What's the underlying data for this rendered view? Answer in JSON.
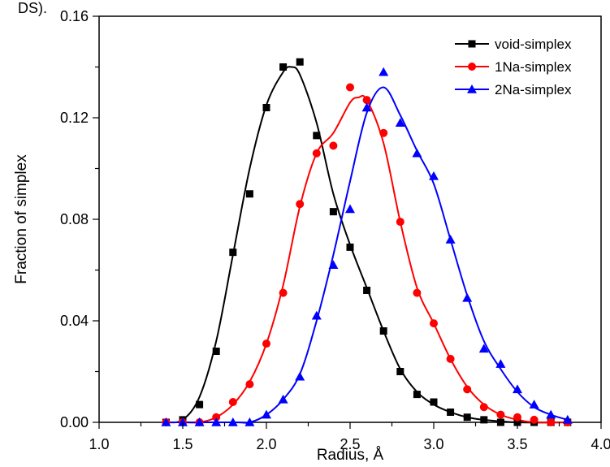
{
  "page": {
    "top_fragment": "DS)."
  },
  "chart_data": {
    "type": "line",
    "title": "",
    "xlabel": "Radius, Å",
    "ylabel": "Fraction of simplex",
    "xlim": [
      1.0,
      4.0
    ],
    "ylim": [
      0.0,
      0.16
    ],
    "xticks": [
      "1.0",
      "1.5",
      "2.0",
      "2.5",
      "3.0",
      "3.5",
      "4.0"
    ],
    "yticks": [
      "0.00",
      "0.04",
      "0.08",
      "0.12",
      "0.16"
    ],
    "grid": false,
    "legend_position": "top-right",
    "series": [
      {
        "name": "void-simplex",
        "color": "#000000",
        "marker": "square",
        "points": [
          [
            1.4,
            0.0
          ],
          [
            1.5,
            0.001
          ],
          [
            1.6,
            0.007
          ],
          [
            1.7,
            0.028
          ],
          [
            1.8,
            0.067
          ],
          [
            1.9,
            0.09
          ],
          [
            2.0,
            0.124
          ],
          [
            2.1,
            0.14
          ],
          [
            2.2,
            0.142
          ],
          [
            2.3,
            0.113
          ],
          [
            2.4,
            0.083
          ],
          [
            2.5,
            0.069
          ],
          [
            2.6,
            0.052
          ],
          [
            2.7,
            0.036
          ],
          [
            2.8,
            0.02
          ],
          [
            2.9,
            0.011
          ],
          [
            3.0,
            0.008
          ],
          [
            3.1,
            0.004
          ],
          [
            3.2,
            0.002
          ],
          [
            3.3,
            0.001
          ],
          [
            3.4,
            0.0
          ],
          [
            3.5,
            0.0
          ],
          [
            3.6,
            0.0
          ],
          [
            3.7,
            0.0
          ],
          [
            3.8,
            0.0
          ]
        ],
        "curve": [
          [
            1.4,
            0.0
          ],
          [
            1.5,
            0.001
          ],
          [
            1.6,
            0.01
          ],
          [
            1.7,
            0.032
          ],
          [
            1.8,
            0.066
          ],
          [
            1.9,
            0.1
          ],
          [
            2.0,
            0.125
          ],
          [
            2.1,
            0.138
          ],
          [
            2.15,
            0.14
          ],
          [
            2.2,
            0.137
          ],
          [
            2.3,
            0.118
          ],
          [
            2.4,
            0.09
          ],
          [
            2.5,
            0.07
          ],
          [
            2.6,
            0.053
          ],
          [
            2.7,
            0.036
          ],
          [
            2.8,
            0.021
          ],
          [
            2.9,
            0.012
          ],
          [
            3.0,
            0.007
          ],
          [
            3.1,
            0.004
          ],
          [
            3.2,
            0.002
          ],
          [
            3.3,
            0.001
          ],
          [
            3.5,
            0.0
          ],
          [
            3.8,
            0.0
          ]
        ]
      },
      {
        "name": "1Na-simplex",
        "color": "#ff0000",
        "marker": "circle",
        "points": [
          [
            1.4,
            0.0
          ],
          [
            1.5,
            0.0
          ],
          [
            1.6,
            0.0
          ],
          [
            1.7,
            0.002
          ],
          [
            1.8,
            0.008
          ],
          [
            1.9,
            0.015
          ],
          [
            2.0,
            0.031
          ],
          [
            2.1,
            0.051
          ],
          [
            2.2,
            0.086
          ],
          [
            2.3,
            0.106
          ],
          [
            2.4,
            0.109
          ],
          [
            2.5,
            0.132
          ],
          [
            2.6,
            0.127
          ],
          [
            2.7,
            0.114
          ],
          [
            2.8,
            0.079
          ],
          [
            2.9,
            0.051
          ],
          [
            3.0,
            0.039
          ],
          [
            3.1,
            0.025
          ],
          [
            3.2,
            0.013
          ],
          [
            3.3,
            0.006
          ],
          [
            3.4,
            0.003
          ],
          [
            3.5,
            0.002
          ],
          [
            3.6,
            0.001
          ],
          [
            3.7,
            0.0
          ],
          [
            3.8,
            0.0
          ]
        ],
        "curve": [
          [
            1.4,
            0.0
          ],
          [
            1.5,
            0.0
          ],
          [
            1.6,
            0.0
          ],
          [
            1.7,
            0.002
          ],
          [
            1.8,
            0.007
          ],
          [
            1.9,
            0.016
          ],
          [
            2.0,
            0.031
          ],
          [
            2.1,
            0.054
          ],
          [
            2.2,
            0.085
          ],
          [
            2.3,
            0.106
          ],
          [
            2.4,
            0.114
          ],
          [
            2.5,
            0.126
          ],
          [
            2.55,
            0.128
          ],
          [
            2.6,
            0.127
          ],
          [
            2.7,
            0.11
          ],
          [
            2.8,
            0.079
          ],
          [
            2.9,
            0.053
          ],
          [
            3.0,
            0.039
          ],
          [
            3.1,
            0.025
          ],
          [
            3.2,
            0.014
          ],
          [
            3.3,
            0.007
          ],
          [
            3.4,
            0.003
          ],
          [
            3.5,
            0.001
          ],
          [
            3.6,
            0.0
          ],
          [
            3.8,
            0.0
          ]
        ]
      },
      {
        "name": "2Na-simplex",
        "color": "#0000ff",
        "marker": "triangle",
        "points": [
          [
            1.4,
            0.0
          ],
          [
            1.5,
            0.0
          ],
          [
            1.6,
            0.0
          ],
          [
            1.7,
            0.0
          ],
          [
            1.8,
            0.0
          ],
          [
            1.9,
            0.0
          ],
          [
            2.0,
            0.003
          ],
          [
            2.1,
            0.009
          ],
          [
            2.2,
            0.018
          ],
          [
            2.3,
            0.042
          ],
          [
            2.4,
            0.062
          ],
          [
            2.5,
            0.084
          ],
          [
            2.6,
            0.124
          ],
          [
            2.7,
            0.138
          ],
          [
            2.8,
            0.118
          ],
          [
            2.9,
            0.106
          ],
          [
            3.0,
            0.097
          ],
          [
            3.1,
            0.072
          ],
          [
            3.2,
            0.049
          ],
          [
            3.3,
            0.029
          ],
          [
            3.4,
            0.023
          ],
          [
            3.5,
            0.013
          ],
          [
            3.6,
            0.007
          ],
          [
            3.7,
            0.003
          ],
          [
            3.8,
            0.001
          ]
        ],
        "curve": [
          [
            1.4,
            0.0
          ],
          [
            1.8,
            0.0
          ],
          [
            1.9,
            0.0
          ],
          [
            2.0,
            0.003
          ],
          [
            2.1,
            0.009
          ],
          [
            2.2,
            0.019
          ],
          [
            2.3,
            0.04
          ],
          [
            2.4,
            0.066
          ],
          [
            2.5,
            0.095
          ],
          [
            2.6,
            0.122
          ],
          [
            2.7,
            0.132
          ],
          [
            2.8,
            0.121
          ],
          [
            2.9,
            0.107
          ],
          [
            3.0,
            0.094
          ],
          [
            3.1,
            0.072
          ],
          [
            3.2,
            0.05
          ],
          [
            3.3,
            0.032
          ],
          [
            3.4,
            0.021
          ],
          [
            3.5,
            0.012
          ],
          [
            3.6,
            0.006
          ],
          [
            3.7,
            0.003
          ],
          [
            3.8,
            0.001
          ]
        ]
      }
    ]
  }
}
